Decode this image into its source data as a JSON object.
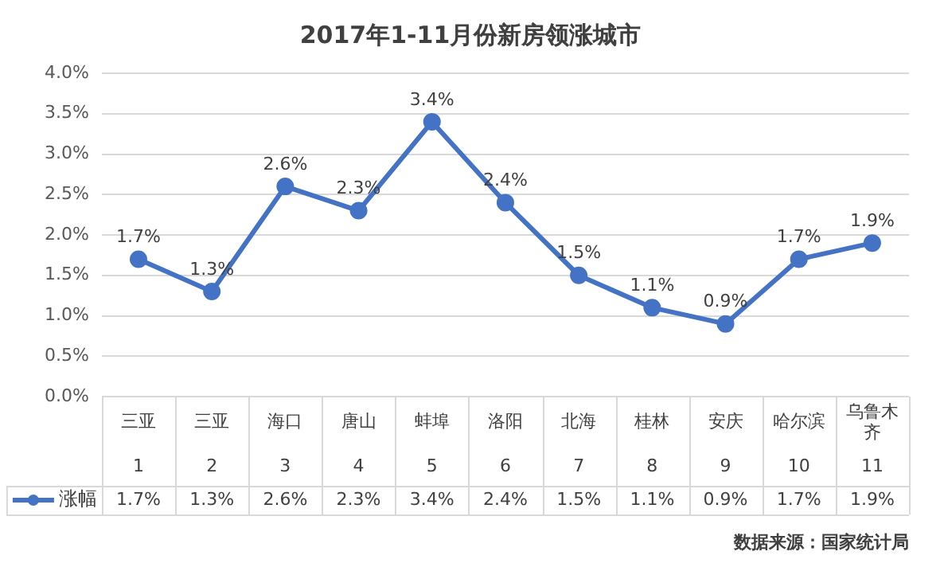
{
  "chart_data": {
    "type": "line",
    "title": "2017年1-11月份新房领涨城市",
    "categories": [
      "三亚\n1",
      "三亚\n2",
      "海口\n3",
      "唐山\n4",
      "蚌埠\n5",
      "洛阳\n6",
      "北海\n7",
      "桂林\n8",
      "安庆\n9",
      "哈尔滨\n10",
      "乌鲁木齐\n11"
    ],
    "series": [
      {
        "name": "涨幅",
        "color": "#4472c4",
        "values": [
          1.7,
          1.3,
          2.6,
          2.3,
          3.4,
          2.4,
          1.5,
          1.1,
          0.9,
          1.7,
          1.9
        ],
        "value_labels": [
          "1.7%",
          "1.3%",
          "2.6%",
          "2.3%",
          "3.4%",
          "2.4%",
          "1.5%",
          "1.1%",
          "0.9%",
          "1.7%",
          "1.9%"
        ]
      }
    ],
    "ylim": [
      0,
      4
    ],
    "yticks": [
      {
        "value": 0,
        "label": "0.0%"
      },
      {
        "value": 0.5,
        "label": "0.5%"
      },
      {
        "value": 1,
        "label": "1.0%"
      },
      {
        "value": 1.5,
        "label": "1.5%"
      },
      {
        "value": 2,
        "label": "2.0%"
      },
      {
        "value": 2.5,
        "label": "2.5%"
      },
      {
        "value": 3,
        "label": "3.0%"
      },
      {
        "value": 3.5,
        "label": "3.5%"
      },
      {
        "value": 4,
        "label": "4.0%"
      }
    ],
    "grid": "y",
    "legend": "bottom",
    "marker": "circle",
    "line_style": "solid",
    "annotations": [
      "数据来源：国家统计局"
    ]
  }
}
